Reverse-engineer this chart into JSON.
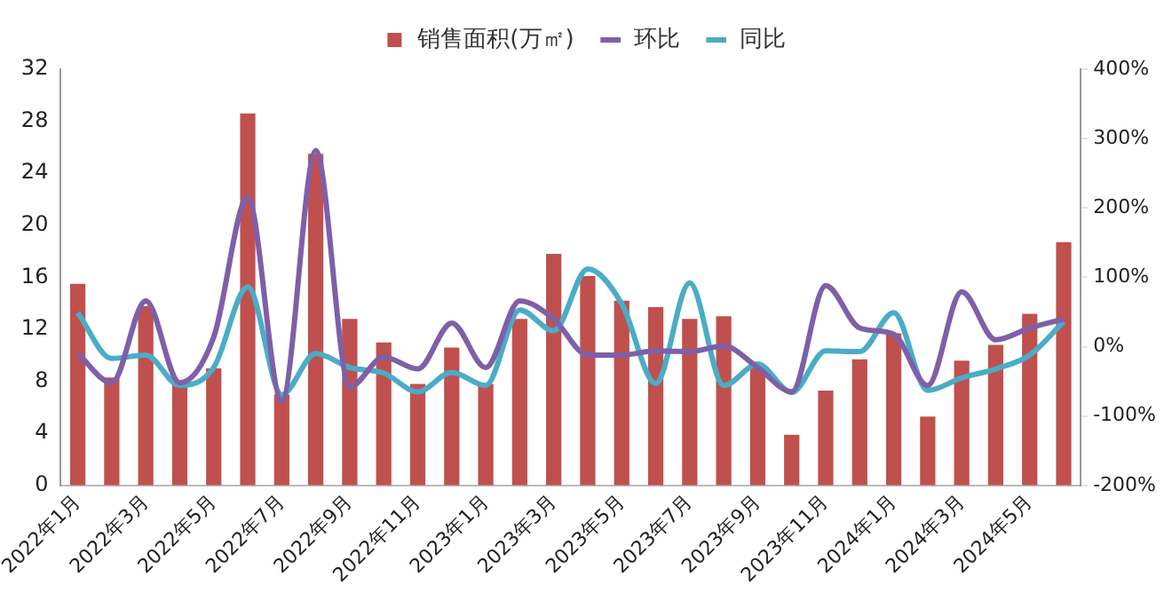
{
  "chart_data": {
    "type": "bar",
    "categories": [
      "2022年1月",
      null,
      "2022年3月",
      null,
      "2022年5月",
      null,
      "2022年7月",
      null,
      "2022年9月",
      null,
      "2022年11月",
      null,
      "2023年1月",
      null,
      "2023年3月",
      null,
      "2023年5月",
      null,
      "2023年7月",
      null,
      "2023年9月",
      null,
      "2023年11月",
      null,
      "2024年1月",
      null,
      "2024年3月",
      null,
      "2024年5月",
      null
    ],
    "series": [
      {
        "name": "销售面积(万㎡)",
        "color": "#c0504d",
        "values": [
          15.5,
          8.3,
          13.8,
          7.8,
          9.0,
          28.6,
          7.0,
          25.5,
          12.8,
          11.0,
          7.8,
          10.6,
          7.8,
          12.8,
          17.8,
          16.1,
          14.2,
          13.7,
          12.8,
          13.0,
          9.1,
          3.9,
          7.3,
          9.7,
          11.7,
          5.3,
          9.6,
          10.8,
          13.2,
          18.7
        ]
      },
      {
        "name": "环比",
        "type": "line",
        "axis": "y2",
        "color": "#7f5fa8",
        "values": [
          -10,
          -52,
          66,
          -52,
          14,
          215,
          -78,
          283,
          -58,
          -15,
          -32,
          34,
          -30,
          66,
          40,
          -12,
          -12,
          -6,
          -7,
          1,
          -30,
          -65,
          88,
          27,
          18,
          -56,
          79,
          10,
          27,
          40
        ]
      },
      {
        "name": "同比",
        "type": "line",
        "axis": "y2",
        "color": "#4bacc6",
        "values": [
          49,
          -17,
          -12,
          -56,
          -30,
          86,
          -69,
          -10,
          -30,
          -38,
          -65,
          -37,
          -56,
          53,
          23,
          112,
          62,
          -53,
          92,
          -56,
          -25,
          -66,
          -6,
          -7,
          49,
          -63,
          -45,
          -32,
          -12,
          36
        ]
      }
    ],
    "ylim": [
      0,
      32
    ],
    "yticks": [
      0,
      4,
      8,
      12,
      16,
      20,
      24,
      28,
      32
    ],
    "y2lim": [
      -200,
      400
    ],
    "y2ticks": [
      {
        "value": -200,
        "label": "-200%"
      },
      {
        "value": -100,
        "label": "-100%"
      },
      {
        "value": 0,
        "label": "0%"
      },
      {
        "value": 100,
        "label": "100%"
      },
      {
        "value": 200,
        "label": "200%"
      },
      {
        "value": 300,
        "label": "300%"
      },
      {
        "value": 400,
        "label": "400%"
      }
    ],
    "grid": false,
    "legend": "top",
    "marker": "none",
    "line_style": "solid"
  }
}
